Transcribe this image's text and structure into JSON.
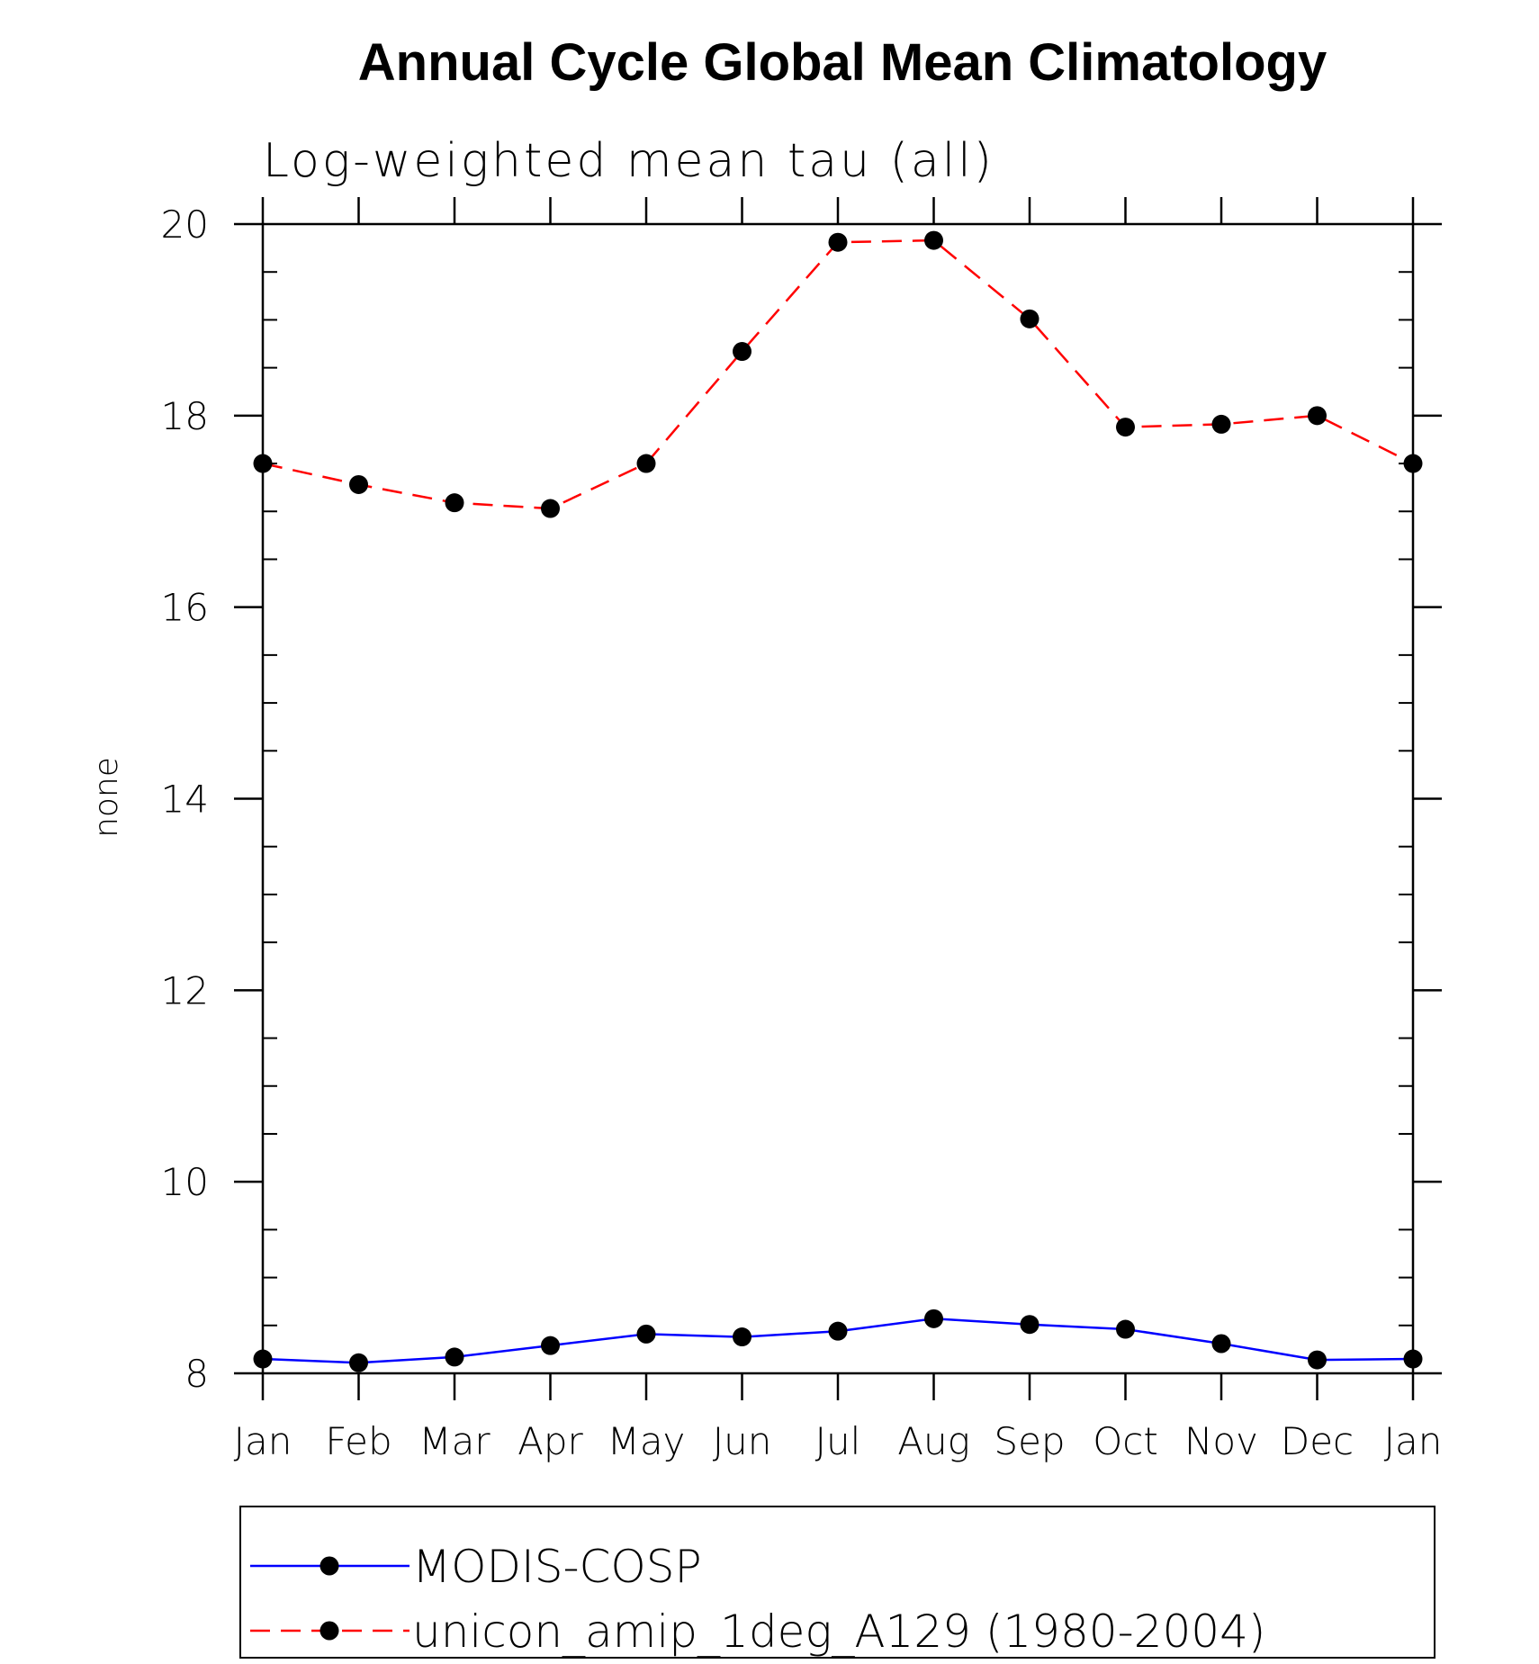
{
  "chart_data": {
    "type": "line",
    "title": "Annual Cycle Global Mean Climatology",
    "subtitle": "Log-weighted mean tau (all)",
    "xlabel": "",
    "ylabel": "none",
    "categories": [
      "Jan",
      "Feb",
      "Mar",
      "Apr",
      "May",
      "Jun",
      "Jul",
      "Aug",
      "Sep",
      "Oct",
      "Nov",
      "Dec",
      "Jan"
    ],
    "ylim": [
      8,
      20
    ],
    "yticks": [
      8,
      10,
      12,
      14,
      16,
      18,
      20
    ],
    "yticks_labels": [
      "8",
      "10",
      "12",
      "14",
      "16",
      "18",
      "20"
    ],
    "grid": false,
    "legend_position": "bottom",
    "series": [
      {
        "name": "MODIS-COSP",
        "color": "#0000ff",
        "line_style": "solid",
        "marker": "filled-circle",
        "values": [
          8.15,
          8.11,
          8.17,
          8.29,
          8.41,
          8.38,
          8.44,
          8.57,
          8.51,
          8.46,
          8.31,
          8.14,
          8.15
        ]
      },
      {
        "name": "unicon_amip_1deg_A129 (1980-2004)",
        "color": "#ff0000",
        "line_style": "dashed",
        "marker": "filled-circle",
        "values": [
          17.5,
          17.28,
          17.09,
          17.03,
          17.5,
          18.67,
          19.81,
          19.83,
          19.01,
          17.88,
          17.91,
          18.0,
          17.5
        ]
      }
    ]
  }
}
